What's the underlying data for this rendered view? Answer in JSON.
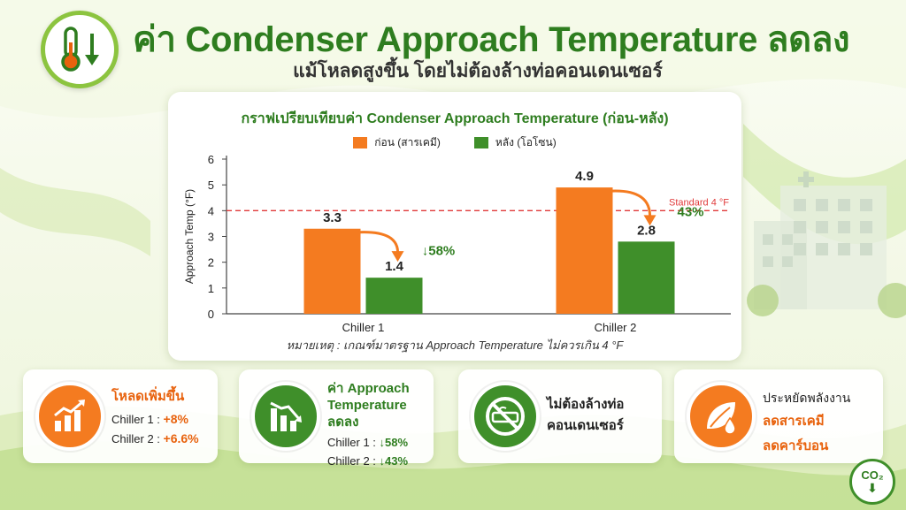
{
  "header": {
    "title": "ค่า Condenser Approach Temperature ลดลง",
    "subtitle": "แม้โหลดสูงขึ้น โดยไม่ต้องล้างท่อคอนเดนเซอร์",
    "icon": "thermometer-down-icon"
  },
  "chart_data": {
    "type": "bar",
    "title": "กราฟเปรียบเทียบค่า Condenser Approach Temperature (ก่อน-หลัง)",
    "ylabel": "Approach Temp (°F)",
    "xlabel": "",
    "ylim": [
      0,
      6
    ],
    "yticks": [
      0,
      1,
      2,
      3,
      4,
      5,
      6
    ],
    "categories": [
      "Chiller 1",
      "Chiller 2"
    ],
    "series": [
      {
        "name": "ก่อน (สารเคมี)",
        "color": "#f47b20",
        "values": [
          3.3,
          4.9
        ],
        "labels": [
          "3.3",
          "4.9"
        ]
      },
      {
        "name": "หลัง (โอโซน)",
        "color": "#3f8f2a",
        "values": [
          1.4,
          2.8
        ],
        "labels": [
          "1.4",
          "2.8"
        ]
      }
    ],
    "reduction_labels": [
      "↓58%",
      "43%"
    ],
    "reference_line": {
      "value": 4,
      "label": "Standard 4 °F",
      "color": "#e03a3a"
    },
    "grid": false,
    "legend_position": "top-center",
    "note": "หมายเหตุ : เกณฑ์มาตรฐาน Approach Temperature ไม่ควรเกิน 4 °F"
  },
  "cards": [
    {
      "icon": "bar-chart-up-icon",
      "heading": "โหลดเพิ่มขึ้น",
      "line1_label": "Chiller 1 :",
      "line1_value": "+8%",
      "line2_label": "Chiller 2 :",
      "line2_value": "+6.6%",
      "color": "#f47b20"
    },
    {
      "icon": "bar-chart-down-icon",
      "heading_line1": "ค่า Approach",
      "heading_line2": "Temperature ลดลง",
      "line1_label": "Chiller 1 :",
      "line1_value": "↓58%",
      "line2_label": "Chiller 2 :",
      "line2_value": "↓43%",
      "color": "#3f8f2a"
    },
    {
      "icon": "no-pipe-cleaning-icon",
      "heading_line1": "ไม่ต้องล้างท่อ",
      "heading_line2": "คอนเดนเซอร์",
      "color": "#3f8f2a"
    },
    {
      "icon": "leaf-drop-icon",
      "heading": "ประหยัดพลังงาน",
      "line1": "ลดสารเคมี",
      "line2": "ลดคาร์บอน",
      "color": "#f47b20"
    }
  ],
  "co2_badge": {
    "text": "CO₂",
    "icon": "co2-down-icon"
  }
}
